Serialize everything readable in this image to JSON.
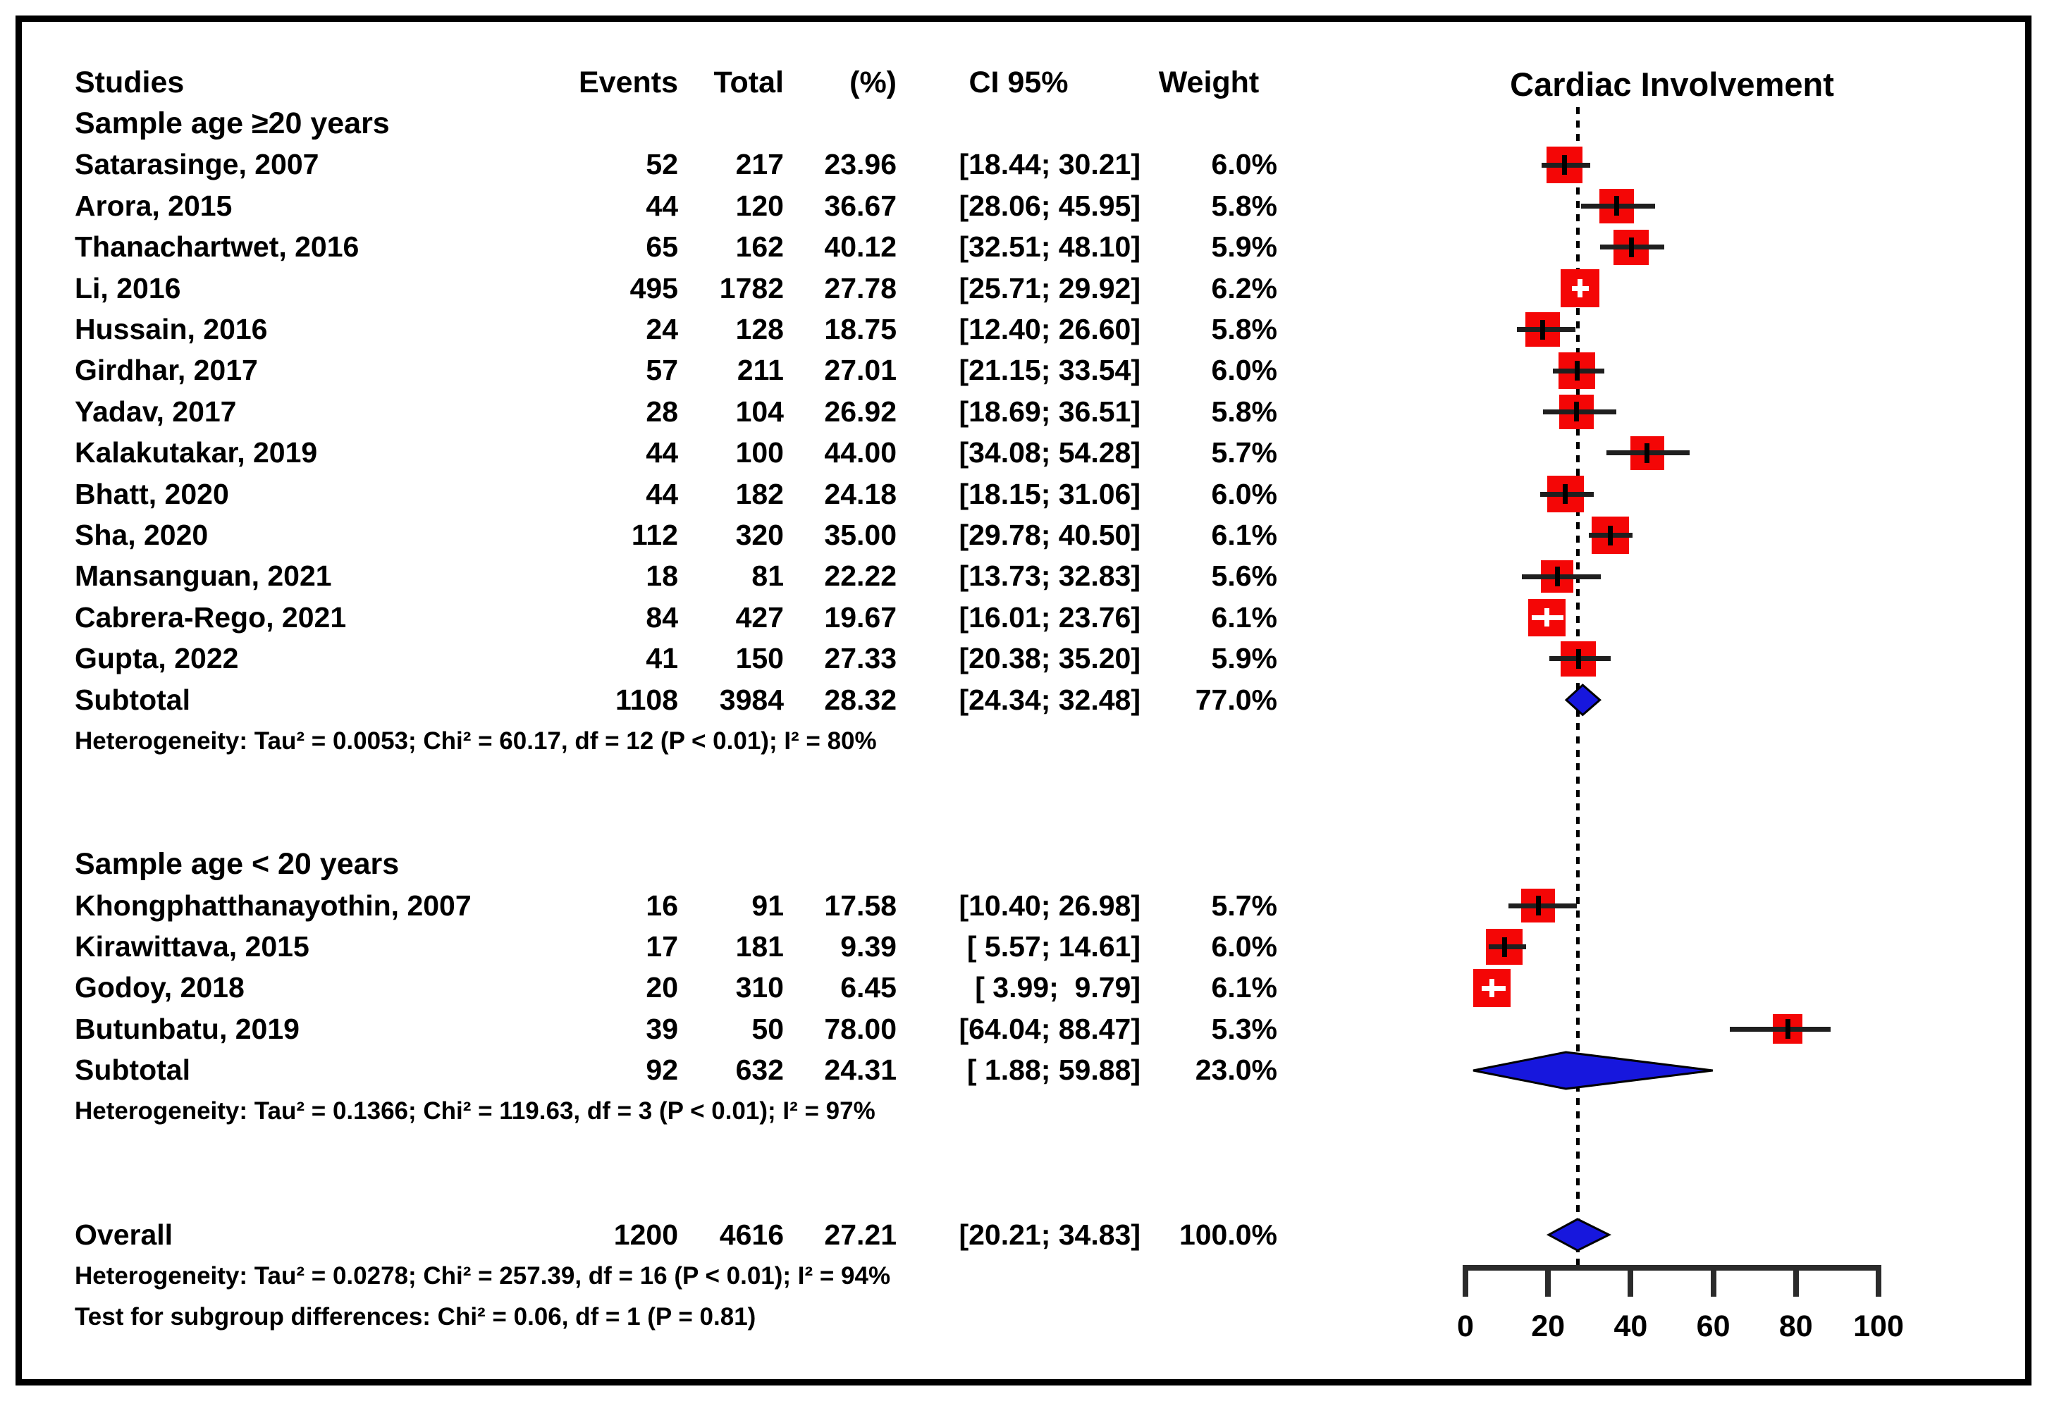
{
  "table": {
    "headers": {
      "studies": "Studies",
      "events": "Events",
      "total": "Total",
      "pct": "(%)",
      "ci": "CI 95%",
      "weight": "Weight"
    },
    "groups": [
      {
        "label": "Sample age ≥20 years",
        "studies": [
          {
            "name": "Satarasinge, 2007",
            "events": "52",
            "total": "217",
            "pct": "23.96",
            "ci": "[18.44; 30.21]",
            "weight": "6.0%"
          },
          {
            "name": "Arora, 2015",
            "events": "44",
            "total": "120",
            "pct": "36.67",
            "ci": "[28.06; 45.95]",
            "weight": "5.8%"
          },
          {
            "name": "Thanachartwet, 2016",
            "events": "65",
            "total": "162",
            "pct": "40.12",
            "ci": "[32.51; 48.10]",
            "weight": "5.9%"
          },
          {
            "name": "Li, 2016",
            "events": "495",
            "total": "1782",
            "pct": "27.78",
            "ci": "[25.71; 29.92]",
            "weight": "6.2%"
          },
          {
            "name": "Hussain, 2016",
            "events": "24",
            "total": "128",
            "pct": "18.75",
            "ci": "[12.40; 26.60]",
            "weight": "5.8%"
          },
          {
            "name": "Girdhar, 2017",
            "events": "57",
            "total": "211",
            "pct": "27.01",
            "ci": "[21.15; 33.54]",
            "weight": "6.0%"
          },
          {
            "name": "Yadav, 2017",
            "events": "28",
            "total": "104",
            "pct": "26.92",
            "ci": "[18.69; 36.51]",
            "weight": "5.8%"
          },
          {
            "name": "Kalakutakar, 2019",
            "events": "44",
            "total": "100",
            "pct": "44.00",
            "ci": "[34.08; 54.28]",
            "weight": "5.7%"
          },
          {
            "name": "Bhatt, 2020",
            "events": "44",
            "total": "182",
            "pct": "24.18",
            "ci": "[18.15; 31.06]",
            "weight": "6.0%"
          },
          {
            "name": "Sha, 2020",
            "events": "112",
            "total": "320",
            "pct": "35.00",
            "ci": "[29.78; 40.50]",
            "weight": "6.1%"
          },
          {
            "name": "Mansanguan, 2021",
            "events": "18",
            "total": "81",
            "pct": "22.22",
            "ci": "[13.73; 32.83]",
            "weight": "5.6%"
          },
          {
            "name": "Cabrera-Rego, 2021",
            "events": "84",
            "total": "427",
            "pct": "19.67",
            "ci": "[16.01; 23.76]",
            "weight": "6.1%"
          },
          {
            "name": "Gupta, 2022",
            "events": "41",
            "total": "150",
            "pct": "27.33",
            "ci": "[20.38; 35.20]",
            "weight": "5.9%"
          }
        ],
        "subtotal": {
          "name": "Subtotal",
          "events": "1108",
          "total": "3984",
          "pct": "28.32",
          "ci": "[24.34; 32.48]",
          "weight": "77.0%"
        },
        "heterogeneity": "Heterogeneity: Tau² = 0.0053; Chi² = 60.17, df = 12 (P < 0.01); I² = 80%"
      },
      {
        "label": "Sample age < 20 years",
        "studies": [
          {
            "name": "Khongphatthanayothin, 2007",
            "events": "16",
            "total": "91",
            "pct": "17.58",
            "ci": "[10.40; 26.98]",
            "weight": "5.7%"
          },
          {
            "name": "Kirawittava, 2015",
            "events": "17",
            "total": "181",
            "pct": "9.39",
            "ci": "[ 5.57; 14.61]",
            "weight": "6.0%"
          },
          {
            "name": "Godoy, 2018",
            "events": "20",
            "total": "310",
            "pct": "6.45",
            "ci": "[ 3.99;  9.79]",
            "weight": "6.1%"
          },
          {
            "name": "Butunbatu, 2019",
            "events": "39",
            "total": "50",
            "pct": "78.00",
            "ci": "[64.04; 88.47]",
            "weight": "5.3%"
          }
        ],
        "subtotal": {
          "name": "Subtotal",
          "events": "92",
          "total": "632",
          "pct": "24.31",
          "ci": "[ 1.88; 59.88]",
          "weight": "23.0%"
        },
        "heterogeneity": "Heterogeneity: Tau² = 0.1366; Chi² = 119.63, df = 3 (P < 0.01); I² = 97%"
      }
    ],
    "overall": {
      "name": "Overall",
      "events": "1200",
      "total": "4616",
      "pct": "27.21",
      "ci": "[20.21; 34.83]",
      "weight": "100.0%"
    },
    "overall_heterogeneity": "Heterogeneity: Tau² = 0.0278; Chi² = 257.39, df = 16 (P < 0.01); I² = 94%",
    "subgroup_test": "Test for subgroup differences: Chi² = 0.06, df = 1 (P = 0.81)"
  },
  "chart_data": {
    "type": "forest",
    "title": "Cardiac Involvement",
    "xlim": [
      0,
      100
    ],
    "x_ticks": [
      0,
      20,
      40,
      60,
      80,
      100
    ],
    "reference_line_x": 27.21,
    "marker_color": "#f40606",
    "summary_color": "#1717dd",
    "ci_line_color": "#1f1f1f",
    "axis_color": "#2b2b2b",
    "groups": [
      {
        "label": "Sample age ≥20 years",
        "points": [
          {
            "study": "Satarasinge, 2007",
            "est": 23.96,
            "lo": 18.44,
            "hi": 30.21,
            "weight_pct": 6.0
          },
          {
            "study": "Arora, 2015",
            "est": 36.67,
            "lo": 28.06,
            "hi": 45.95,
            "weight_pct": 5.8
          },
          {
            "study": "Thanachartwet, 2016",
            "est": 40.12,
            "lo": 32.51,
            "hi": 48.1,
            "weight_pct": 5.9
          },
          {
            "study": "Li, 2016",
            "est": 27.78,
            "lo": 25.71,
            "hi": 29.92,
            "weight_pct": 6.2
          },
          {
            "study": "Hussain, 2016",
            "est": 18.75,
            "lo": 12.4,
            "hi": 26.6,
            "weight_pct": 5.8
          },
          {
            "study": "Girdhar, 2017",
            "est": 27.01,
            "lo": 21.15,
            "hi": 33.54,
            "weight_pct": 6.0
          },
          {
            "study": "Yadav, 2017",
            "est": 26.92,
            "lo": 18.69,
            "hi": 36.51,
            "weight_pct": 5.8
          },
          {
            "study": "Kalakutakar, 2019",
            "est": 44.0,
            "lo": 34.08,
            "hi": 54.28,
            "weight_pct": 5.7
          },
          {
            "study": "Bhatt, 2020",
            "est": 24.18,
            "lo": 18.15,
            "hi": 31.06,
            "weight_pct": 6.0
          },
          {
            "study": "Sha, 2020",
            "est": 35.0,
            "lo": 29.78,
            "hi": 40.5,
            "weight_pct": 6.1
          },
          {
            "study": "Mansanguan, 2021",
            "est": 22.22,
            "lo": 13.73,
            "hi": 32.83,
            "weight_pct": 5.6
          },
          {
            "study": "Cabrera-Rego, 2021",
            "est": 19.67,
            "lo": 16.01,
            "hi": 23.76,
            "weight_pct": 6.1
          },
          {
            "study": "Gupta, 2022",
            "est": 27.33,
            "lo": 20.38,
            "hi": 35.2,
            "weight_pct": 5.9
          }
        ],
        "summary": {
          "label": "Subtotal",
          "est": 28.32,
          "lo": 24.34,
          "hi": 32.48,
          "weight_pct": 77.0
        }
      },
      {
        "label": "Sample age < 20 years",
        "points": [
          {
            "study": "Khongphatthanayothin, 2007",
            "est": 17.58,
            "lo": 10.4,
            "hi": 26.98,
            "weight_pct": 5.7
          },
          {
            "study": "Kirawittava, 2015",
            "est": 9.39,
            "lo": 5.57,
            "hi": 14.61,
            "weight_pct": 6.0
          },
          {
            "study": "Godoy, 2018",
            "est": 6.45,
            "lo": 3.99,
            "hi": 9.79,
            "weight_pct": 6.1
          },
          {
            "study": "Butunbatu, 2019",
            "est": 78.0,
            "lo": 64.04,
            "hi": 88.47,
            "weight_pct": 5.3
          }
        ],
        "summary": {
          "label": "Subtotal",
          "est": 24.31,
          "lo": 1.88,
          "hi": 59.88,
          "weight_pct": 23.0
        }
      }
    ],
    "overall": {
      "label": "Overall",
      "est": 27.21,
      "lo": 20.21,
      "hi": 34.83,
      "weight_pct": 100.0
    }
  }
}
